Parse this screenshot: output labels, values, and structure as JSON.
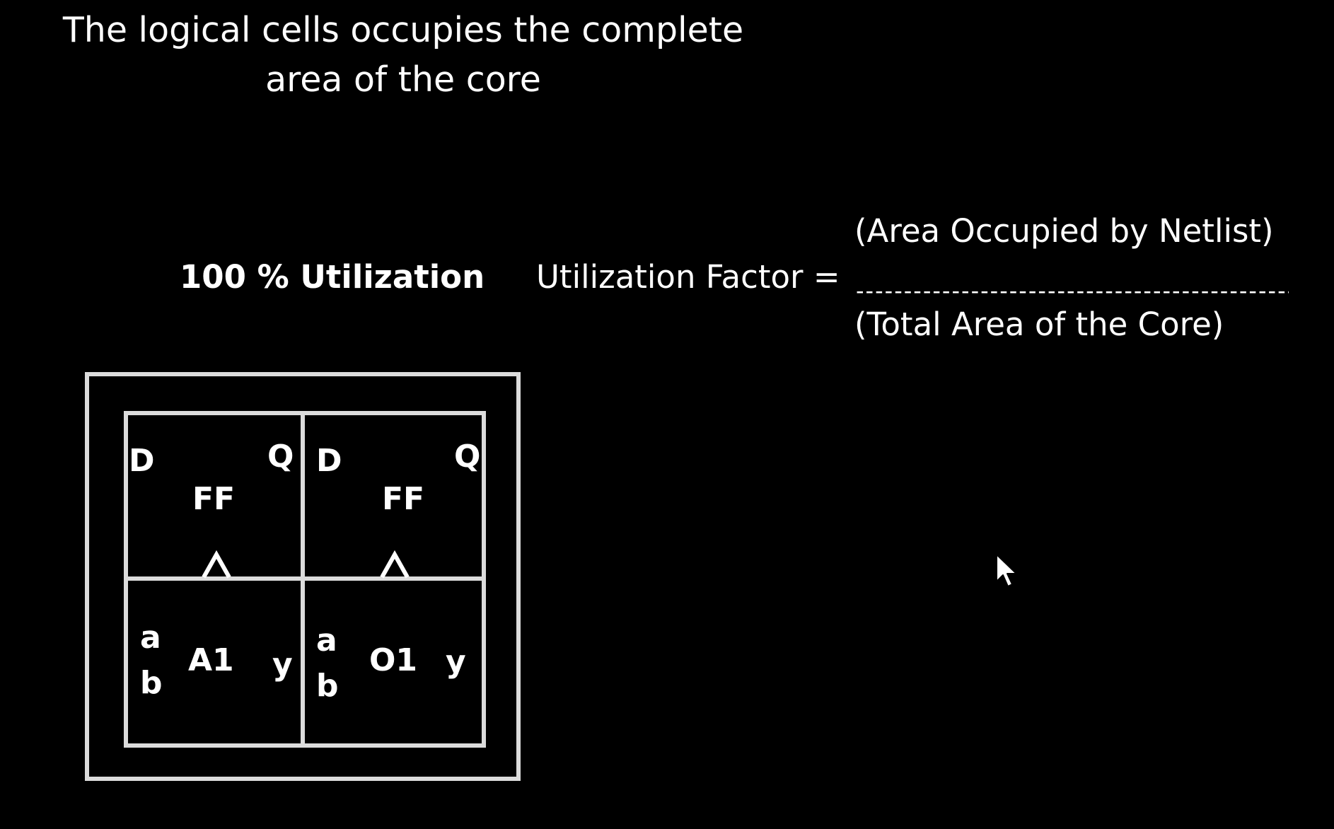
{
  "caption": {
    "line1": "The logical cells occupies the complete",
    "line2": "area of the core"
  },
  "utilization_label": "100 % Utilization",
  "formula": {
    "lhs": "Utilization Factor =",
    "numerator": "(Area Occupied by Netlist)",
    "line": "------------------------------------------------------------",
    "denominator": "(Total Area of the Core)"
  },
  "cells": {
    "ff1": {
      "name": "FF",
      "input": "D",
      "output": "Q"
    },
    "ff2": {
      "name": "FF",
      "input": "D",
      "output": "Q"
    },
    "and": {
      "name": "A1",
      "input_a": "a",
      "input_b": "b",
      "output": "y"
    },
    "or": {
      "name": "O1",
      "input_a": "a",
      "input_b": "b",
      "output": "y"
    }
  },
  "colors": {
    "background": "#000000",
    "foreground": "#ffffff",
    "outline": "#dcdcdc"
  },
  "icons": {
    "clock_pin": "clock-triangle-icon",
    "pointer": "mouse-cursor-icon"
  }
}
